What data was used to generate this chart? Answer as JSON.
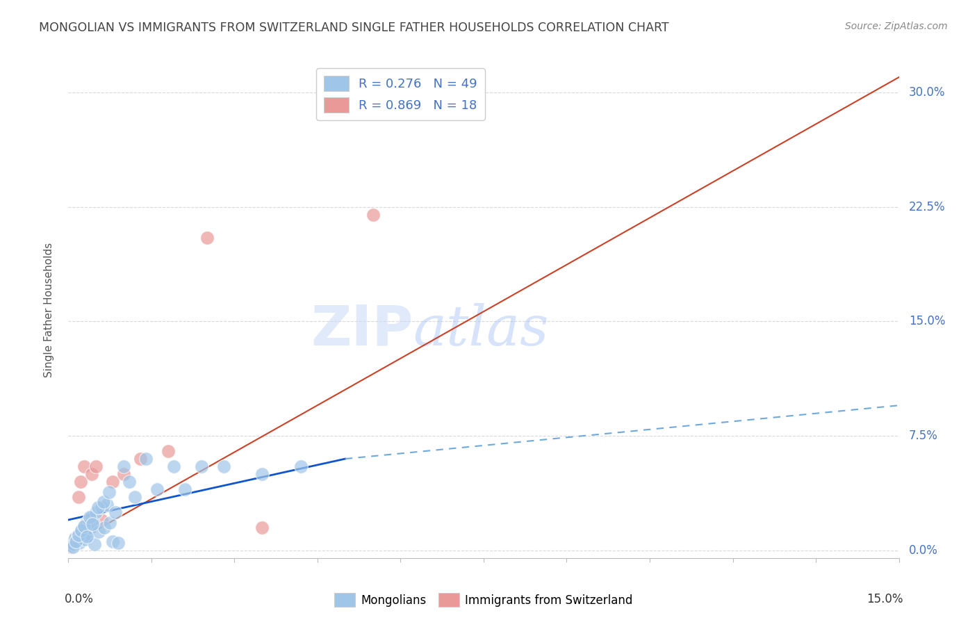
{
  "title": "MONGOLIAN VS IMMIGRANTS FROM SWITZERLAND SINGLE FATHER HOUSEHOLDS CORRELATION CHART",
  "source": "Source: ZipAtlas.com",
  "ylabel": "Single Father Households",
  "ytick_values": [
    0.0,
    7.5,
    15.0,
    22.5,
    30.0
  ],
  "xlim": [
    0.0,
    15.0
  ],
  "ylim": [
    -0.5,
    32.0
  ],
  "mongolian_color": "#9fc5e8",
  "swiss_color": "#ea9999",
  "mongolian_line_solid_color": "#1155cc",
  "mongolian_line_dash_color": "#6fa8dc",
  "swiss_line_color": "#cc4125",
  "mongolian_x": [
    0.05,
    0.07,
    0.1,
    0.12,
    0.15,
    0.17,
    0.2,
    0.22,
    0.25,
    0.27,
    0.3,
    0.32,
    0.35,
    0.37,
    0.4,
    0.42,
    0.45,
    0.47,
    0.5,
    0.55,
    0.6,
    0.65,
    0.7,
    0.75,
    0.8,
    0.85,
    0.9,
    1.0,
    1.1,
    1.2,
    1.4,
    1.6,
    1.9,
    2.1,
    2.4,
    2.8,
    3.5,
    4.2,
    0.08,
    0.13,
    0.18,
    0.23,
    0.28,
    0.33,
    0.38,
    0.43,
    0.53,
    0.63,
    0.73
  ],
  "mongolian_y": [
    0.3,
    0.5,
    0.4,
    0.8,
    0.6,
    1.0,
    0.5,
    1.2,
    0.8,
    1.5,
    0.7,
    1.8,
    1.0,
    2.0,
    1.5,
    2.2,
    1.8,
    0.4,
    2.5,
    1.2,
    2.8,
    1.5,
    3.0,
    1.8,
    0.6,
    2.5,
    0.5,
    5.5,
    4.5,
    3.5,
    6.0,
    4.0,
    5.5,
    4.0,
    5.5,
    5.5,
    5.0,
    5.5,
    0.2,
    0.6,
    1.0,
    1.3,
    1.6,
    0.9,
    2.2,
    1.7,
    2.8,
    3.2,
    3.8
  ],
  "swiss_x": [
    0.05,
    0.08,
    0.12,
    0.18,
    0.22,
    0.28,
    0.35,
    0.42,
    0.5,
    0.6,
    0.8,
    1.0,
    1.3,
    1.8,
    2.5,
    3.5,
    5.5,
    6.5
  ],
  "swiss_y": [
    0.2,
    0.4,
    0.8,
    3.5,
    4.5,
    5.5,
    1.5,
    5.0,
    5.5,
    2.0,
    4.5,
    5.0,
    6.0,
    6.5,
    20.5,
    1.5,
    22.0,
    30.5
  ],
  "mongo_solid_x1": 0.0,
  "mongo_solid_y1": 2.0,
  "mongo_solid_x2": 5.0,
  "mongo_solid_y2": 6.0,
  "mongo_dash_x1": 5.0,
  "mongo_dash_y1": 6.0,
  "mongo_dash_x2": 15.0,
  "mongo_dash_y2": 9.5,
  "swiss_line_x1": 0.0,
  "swiss_line_y1": 0.3,
  "swiss_line_x2": 15.0,
  "swiss_line_y2": 31.0,
  "watermark_zip": "ZIP",
  "watermark_atlas": "atlas",
  "background_color": "#ffffff",
  "grid_color": "#d9d9d9",
  "title_color": "#434343",
  "source_color": "#888888",
  "yaxis_label_color": "#555555",
  "tick_color": "#4472c4"
}
